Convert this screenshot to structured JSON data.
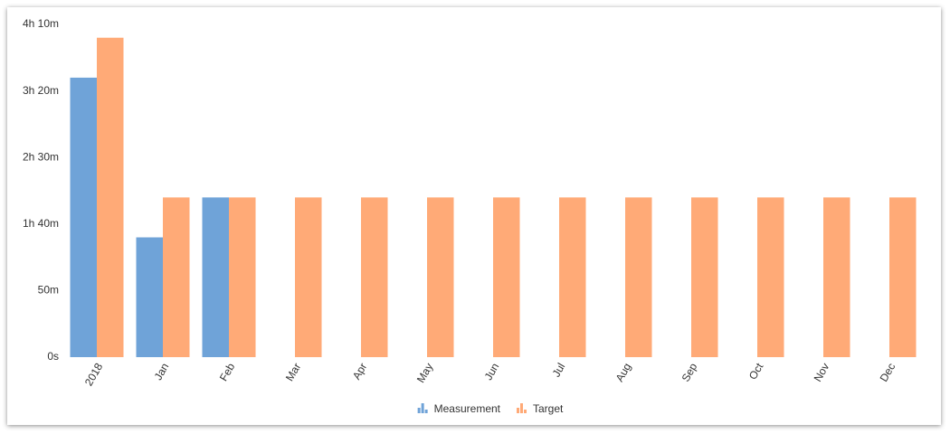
{
  "chart_data": {
    "type": "bar",
    "categories": [
      "2018",
      "Jan",
      "Feb",
      "Mar",
      "Apr",
      "May",
      "Jun",
      "Jul",
      "Aug",
      "Sep",
      "Oct",
      "Nov",
      "Dec"
    ],
    "series": [
      {
        "name": "Measurement",
        "color": "#6fa3d8",
        "values": [
          210,
          90,
          120,
          null,
          null,
          null,
          null,
          null,
          null,
          null,
          null,
          null,
          null
        ]
      },
      {
        "name": "Target",
        "color": "#ffaa77",
        "values": [
          240,
          120,
          120,
          120,
          120,
          120,
          120,
          120,
          120,
          120,
          120,
          120,
          120
        ]
      }
    ],
    "ylim": [
      0,
      250
    ],
    "yticks": [
      {
        "value": 0,
        "label": "0s"
      },
      {
        "value": 50,
        "label": "50m"
      },
      {
        "value": 100,
        "label": "1h 40m"
      },
      {
        "value": 150,
        "label": "2h 30m"
      },
      {
        "value": 200,
        "label": "3h 20m"
      },
      {
        "value": 250,
        "label": "4h 10m"
      }
    ],
    "legend": "bottom"
  }
}
